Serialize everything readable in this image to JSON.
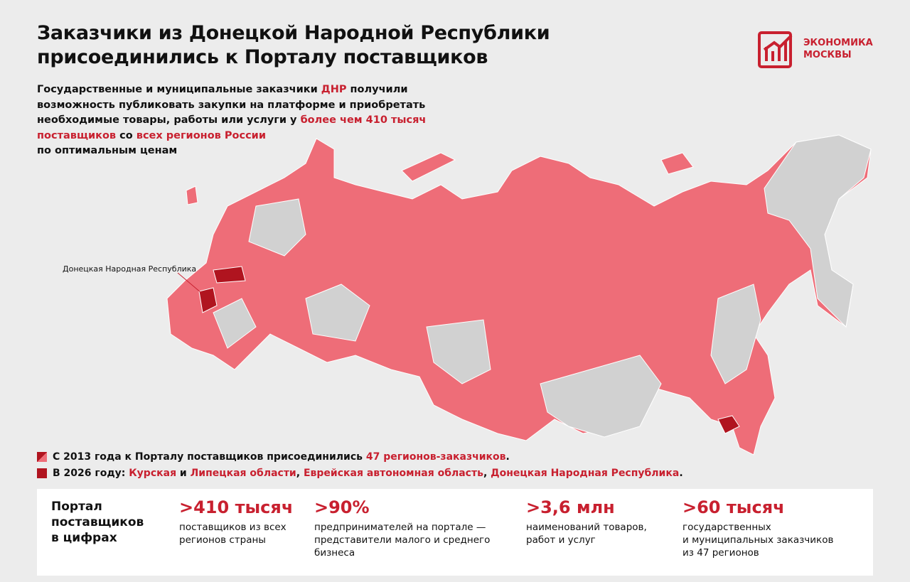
{
  "header": {
    "title_lines": [
      "Заказчики из Донецкой Народной Республики",
      "присоединились к Порталу поставщиков"
    ],
    "logo_lines": [
      "ЭКОНОМИКА",
      "МОСКВЫ"
    ]
  },
  "intro": {
    "lines": [
      [
        {
          "text": "Государственные и муниципальные заказчики ",
          "accent": false
        },
        {
          "text": "ДНР",
          "accent": true
        },
        {
          "text": " получили",
          "accent": false
        }
      ],
      [
        {
          "text": "возможность публиковать закупки на платформе и приобретать",
          "accent": false
        }
      ],
      [
        {
          "text": "необходимые товары, работы или услуги у ",
          "accent": false
        },
        {
          "text": "более чем 410 тысяч",
          "accent": true
        }
      ],
      [
        {
          "text": "поставщиков",
          "accent": true
        },
        {
          "text": " со ",
          "accent": false
        },
        {
          "text": "всех регионов России",
          "accent": true
        }
      ],
      [
        {
          "text": "по оптимальным ценам",
          "accent": false
        }
      ]
    ]
  },
  "map": {
    "label": "Донецкая Народная Республика"
  },
  "legend": [
    {
      "segments": [
        {
          "text": "С 2013 года к Порталу поставщиков присоединились ",
          "accent": false
        },
        {
          "text": "47 регионов-заказчиков",
          "accent": true
        },
        {
          "text": ".",
          "accent": false
        }
      ]
    },
    {
      "segments": [
        {
          "text": "В 2026 году: ",
          "accent": false
        },
        {
          "text": "Курская",
          "accent": true
        },
        {
          "text": " и ",
          "accent": false
        },
        {
          "text": "Липецкая области",
          "accent": true
        },
        {
          "text": ", ",
          "accent": false
        },
        {
          "text": "Еврейская автономная область",
          "accent": true
        },
        {
          "text": ", ",
          "accent": false
        },
        {
          "text": "Донецкая Народная Республика",
          "accent": true
        },
        {
          "text": ".",
          "accent": false
        }
      ]
    }
  ],
  "stats": {
    "heading_lines": [
      "Портал",
      "поставщиков",
      "в цифрах"
    ],
    "items": [
      {
        "value": ">410 тысяч",
        "description_lines": [
          "поставщиков из всех",
          "регионов страны"
        ]
      },
      {
        "value": ">90%",
        "description_lines": [
          "предпринимателей на портале —",
          "представители малого и среднего",
          "бизнеса"
        ]
      },
      {
        "value": ">3,6 млн",
        "description_lines": [
          "наименований товаров,",
          "работ и услуг"
        ]
      },
      {
        "value": ">60 тысяч",
        "description_lines": [
          "государственных",
          "и муниципальных заказчиков",
          "из 47 регионов"
        ]
      }
    ]
  }
}
